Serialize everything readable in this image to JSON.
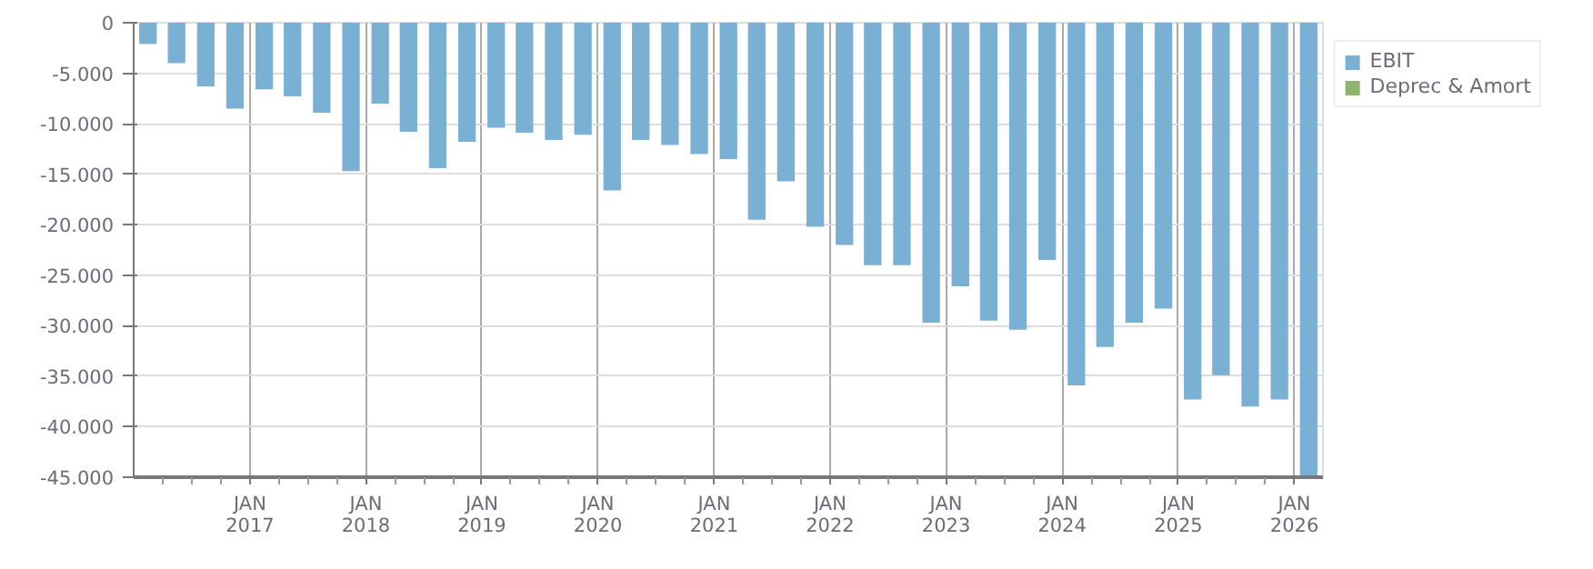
{
  "chart_data": {
    "type": "bar",
    "x": [
      "2016-02-15",
      "2016-05-15",
      "2016-08-15",
      "2016-11-15",
      "2017-02-15",
      "2017-05-15",
      "2017-08-15",
      "2017-11-15",
      "2018-02-15",
      "2018-05-15",
      "2018-08-15",
      "2018-11-15",
      "2019-02-15",
      "2019-05-15",
      "2019-08-15",
      "2019-11-15",
      "2020-02-15",
      "2020-05-15",
      "2020-08-15",
      "2020-11-15",
      "2021-02-15",
      "2021-05-15",
      "2021-08-15",
      "2021-11-15",
      "2022-02-15",
      "2022-05-15",
      "2022-08-15",
      "2022-11-15",
      "2023-02-15",
      "2023-05-15",
      "2023-08-15",
      "2023-11-15",
      "2024-02-15",
      "2024-05-15",
      "2024-08-15",
      "2024-11-15",
      "2025-02-15",
      "2025-05-15",
      "2025-08-15",
      "2025-11-15",
      "2026-02-15"
    ],
    "series": [
      {
        "name": "EBIT",
        "color": "#7ab0d4",
        "values": [
          -2100,
          -4000,
          -6300,
          -8500,
          -6600,
          -7300,
          -8900,
          -14700,
          -8000,
          -10800,
          -14400,
          -11800,
          -10400,
          -10900,
          -11600,
          -11100,
          -16600,
          -11600,
          -12100,
          -13000,
          -13500,
          -19500,
          -15700,
          -20200,
          -22000,
          -24000,
          -24000,
          -29700,
          -26100,
          -29500,
          -30400,
          -23500,
          -35900,
          -32100,
          -29700,
          -28300,
          -37300,
          -34900,
          -38000,
          -37300,
          -45000
        ]
      },
      {
        "name": "Deprec & Amort",
        "color": "#8cb46e",
        "values": [
          null,
          null,
          null,
          null,
          null,
          null,
          null,
          null,
          null,
          null,
          null,
          null,
          null,
          null,
          null,
          null,
          null,
          null,
          null,
          null,
          null,
          null,
          null,
          null,
          null,
          null,
          null,
          null,
          null,
          null,
          null,
          null,
          null,
          null,
          null,
          null,
          null,
          null,
          null,
          null,
          null
        ]
      }
    ],
    "xlim": [
      "2016-01-01",
      "2026-04-01"
    ],
    "xticks": [
      {
        "value": "2017-01-01",
        "label": "JAN\n2017"
      },
      {
        "value": "2018-01-01",
        "label": "JAN\n2018"
      },
      {
        "value": "2019-01-01",
        "label": "JAN\n2019"
      },
      {
        "value": "2020-01-01",
        "label": "JAN\n2020"
      },
      {
        "value": "2021-01-01",
        "label": "JAN\n2021"
      },
      {
        "value": "2022-01-01",
        "label": "JAN\n2022"
      },
      {
        "value": "2023-01-01",
        "label": "JAN\n2023"
      },
      {
        "value": "2024-01-01",
        "label": "JAN\n2024"
      },
      {
        "value": "2025-01-01",
        "label": "JAN\n2025"
      },
      {
        "value": "2026-01-01",
        "label": "JAN\n2026"
      }
    ],
    "ylim": [
      -45000,
      0
    ],
    "yticks": [
      {
        "value": 0,
        "label": "0"
      },
      {
        "value": -5000,
        "label": "-5.000"
      },
      {
        "value": -10000,
        "label": "-10.000"
      },
      {
        "value": -15000,
        "label": "-15.000"
      },
      {
        "value": -20000,
        "label": "-20.000"
      },
      {
        "value": -25000,
        "label": "-25.000"
      },
      {
        "value": -30000,
        "label": "-30.000"
      },
      {
        "value": -35000,
        "label": "-35.000"
      },
      {
        "value": -40000,
        "label": "-40.000"
      },
      {
        "value": -45000,
        "label": "-45.000"
      }
    ],
    "grid": true,
    "legend": "top right"
  }
}
